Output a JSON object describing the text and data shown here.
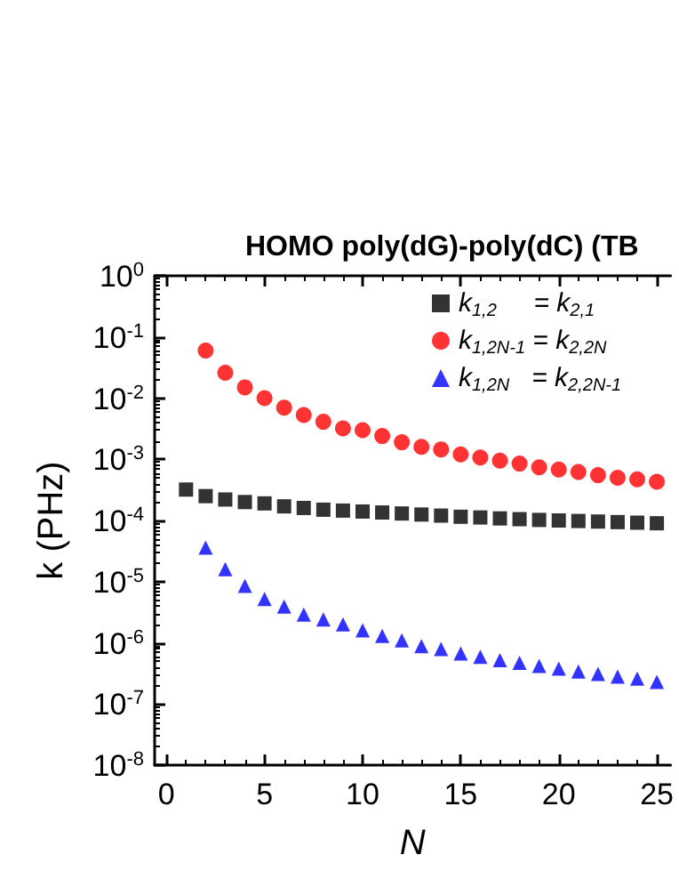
{
  "chart_data": {
    "type": "scatter",
    "title": "HOMO poly(dG)-poly(dC) (TB",
    "xlabel": "N",
    "ylabel": "k (PHz)",
    "log": "y",
    "grid": false,
    "legend": "top right",
    "xlim": [
      -0.6,
      25.7
    ],
    "xticks": [
      0,
      5,
      10,
      15,
      20,
      25
    ],
    "ylim": [
      1e-08,
      1
    ],
    "yticks": [
      {
        "value": 1e-08,
        "label": "10$^{-8}$"
      },
      {
        "value": 1e-07,
        "label": "10$^{-7}$"
      },
      {
        "value": 1e-06,
        "label": "10$^{-6}$"
      },
      {
        "value": 1e-05,
        "label": "10$^{-5}$"
      },
      {
        "value": 0.0001,
        "label": "10$^{-4}$"
      },
      {
        "value": 0.001,
        "label": "10$^{-3}$"
      },
      {
        "value": 0.01,
        "label": "10$^{-2}$"
      },
      {
        "value": 0.1,
        "label": "10$^{-1}$"
      },
      {
        "value": 1,
        "label": "10$^{0}$"
      }
    ],
    "series": [
      {
        "name": "k$_{1,2}$     = k$_{2,1}$",
        "color": "#000000",
        "marker": "square",
        "x": [
          1,
          2,
          3,
          4,
          5,
          6,
          7,
          8,
          9,
          10,
          11,
          12,
          13,
          14,
          15,
          16,
          17,
          18,
          19,
          20,
          21,
          22,
          23,
          24,
          25
        ],
        "values": [
          0.00032,
          0.00025,
          0.00022,
          0.0002,
          0.00019,
          0.00017,
          0.00016,
          0.00015,
          0.000145,
          0.00014,
          0.000135,
          0.00013,
          0.000125,
          0.00012,
          0.000115,
          0.000112,
          0.000108,
          0.000105,
          0.000102,
          0.0001,
          9.8e-05,
          9.6e-05,
          9.4e-05,
          9.2e-05,
          9e-05
        ]
      },
      {
        "name": "k$_{1,2N-1}$ = k$_{2,2N}$",
        "color": "#ff0000",
        "marker": "circle",
        "x": [
          2,
          3,
          4,
          5,
          6,
          7,
          8,
          9,
          10,
          11,
          12,
          13,
          14,
          15,
          16,
          17,
          18,
          19,
          20,
          21,
          22,
          23,
          24,
          25
        ],
        "values": [
          0.06,
          0.026,
          0.015,
          0.01,
          0.007,
          0.0053,
          0.0041,
          0.0032,
          0.003,
          0.0024,
          0.0019,
          0.0016,
          0.00145,
          0.0012,
          0.00107,
          0.00095,
          0.00085,
          0.00074,
          0.00068,
          0.00062,
          0.00055,
          0.0005,
          0.00047,
          0.00043
        ]
      },
      {
        "name": "k$_{1,2N}$   = k$_{2,2N-1}$",
        "color": "#0000ff",
        "marker": "triangle",
        "x": [
          2,
          3,
          4,
          5,
          6,
          7,
          8,
          9,
          10,
          11,
          12,
          13,
          14,
          15,
          16,
          17,
          18,
          19,
          20,
          21,
          22,
          23,
          24,
          25
        ],
        "values": [
          3.6e-05,
          1.6e-05,
          8.5e-06,
          5.2e-06,
          3.9e-06,
          2.9e-06,
          2.4e-06,
          2e-06,
          1.6e-06,
          1.3e-06,
          1.1e-06,
          8.8e-07,
          7.9e-07,
          6.7e-07,
          5.9e-07,
          5.2e-07,
          4.7e-07,
          4.2e-07,
          3.8e-07,
          3.4e-07,
          3.1e-07,
          2.8e-07,
          2.6e-07,
          2.3e-07
        ]
      }
    ]
  }
}
